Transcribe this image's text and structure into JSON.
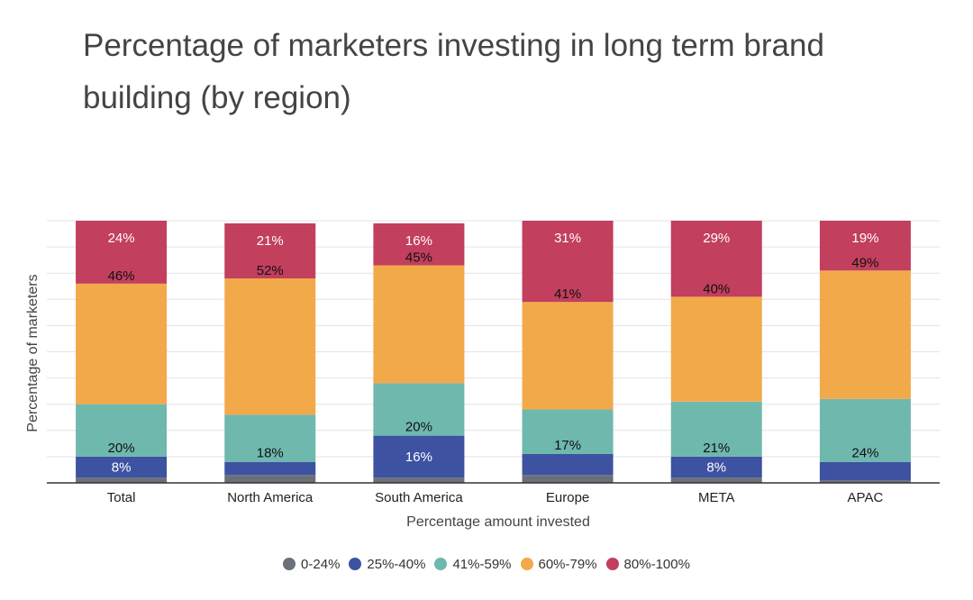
{
  "chart_data": {
    "type": "bar",
    "stacked": true,
    "title": "Percentage of marketers investing in long term brand building (by region)",
    "xlabel": "Percentage amount invested",
    "ylabel": "Percentage of marketers",
    "ylim": [
      0,
      100
    ],
    "grid": true,
    "legend_position": "bottom",
    "categories": [
      "Total",
      "North America",
      "South America",
      "Europe",
      "META",
      "APAC"
    ],
    "series": [
      {
        "name": "0-24%",
        "color": "#6b7078",
        "values": [
          2,
          3,
          2,
          3,
          2,
          1
        ],
        "labels": [
          "",
          "",
          "",
          "",
          "",
          ""
        ]
      },
      {
        "name": "25%-40%",
        "color": "#3d52a1",
        "values": [
          8,
          5,
          16,
          8,
          8,
          7
        ],
        "labels": [
          "8%",
          "",
          "16%",
          "",
          "8%",
          ""
        ]
      },
      {
        "name": "41%-59%",
        "color": "#6fb8ae",
        "values": [
          20,
          18,
          20,
          17,
          21,
          24
        ],
        "labels": [
          "20%",
          "18%",
          "20%",
          "17%",
          "21%",
          "24%"
        ]
      },
      {
        "name": "60%-79%",
        "color": "#f2a94a",
        "values": [
          46,
          52,
          45,
          41,
          40,
          49
        ],
        "labels": [
          "46%",
          "52%",
          "45%",
          "41%",
          "40%",
          "49%"
        ]
      },
      {
        "name": "80%-100%",
        "color": "#c23f5e",
        "values": [
          24,
          21,
          16,
          31,
          29,
          19
        ],
        "labels": [
          "24%",
          "21%",
          "16%",
          "31%",
          "29%",
          "19%"
        ]
      }
    ]
  }
}
